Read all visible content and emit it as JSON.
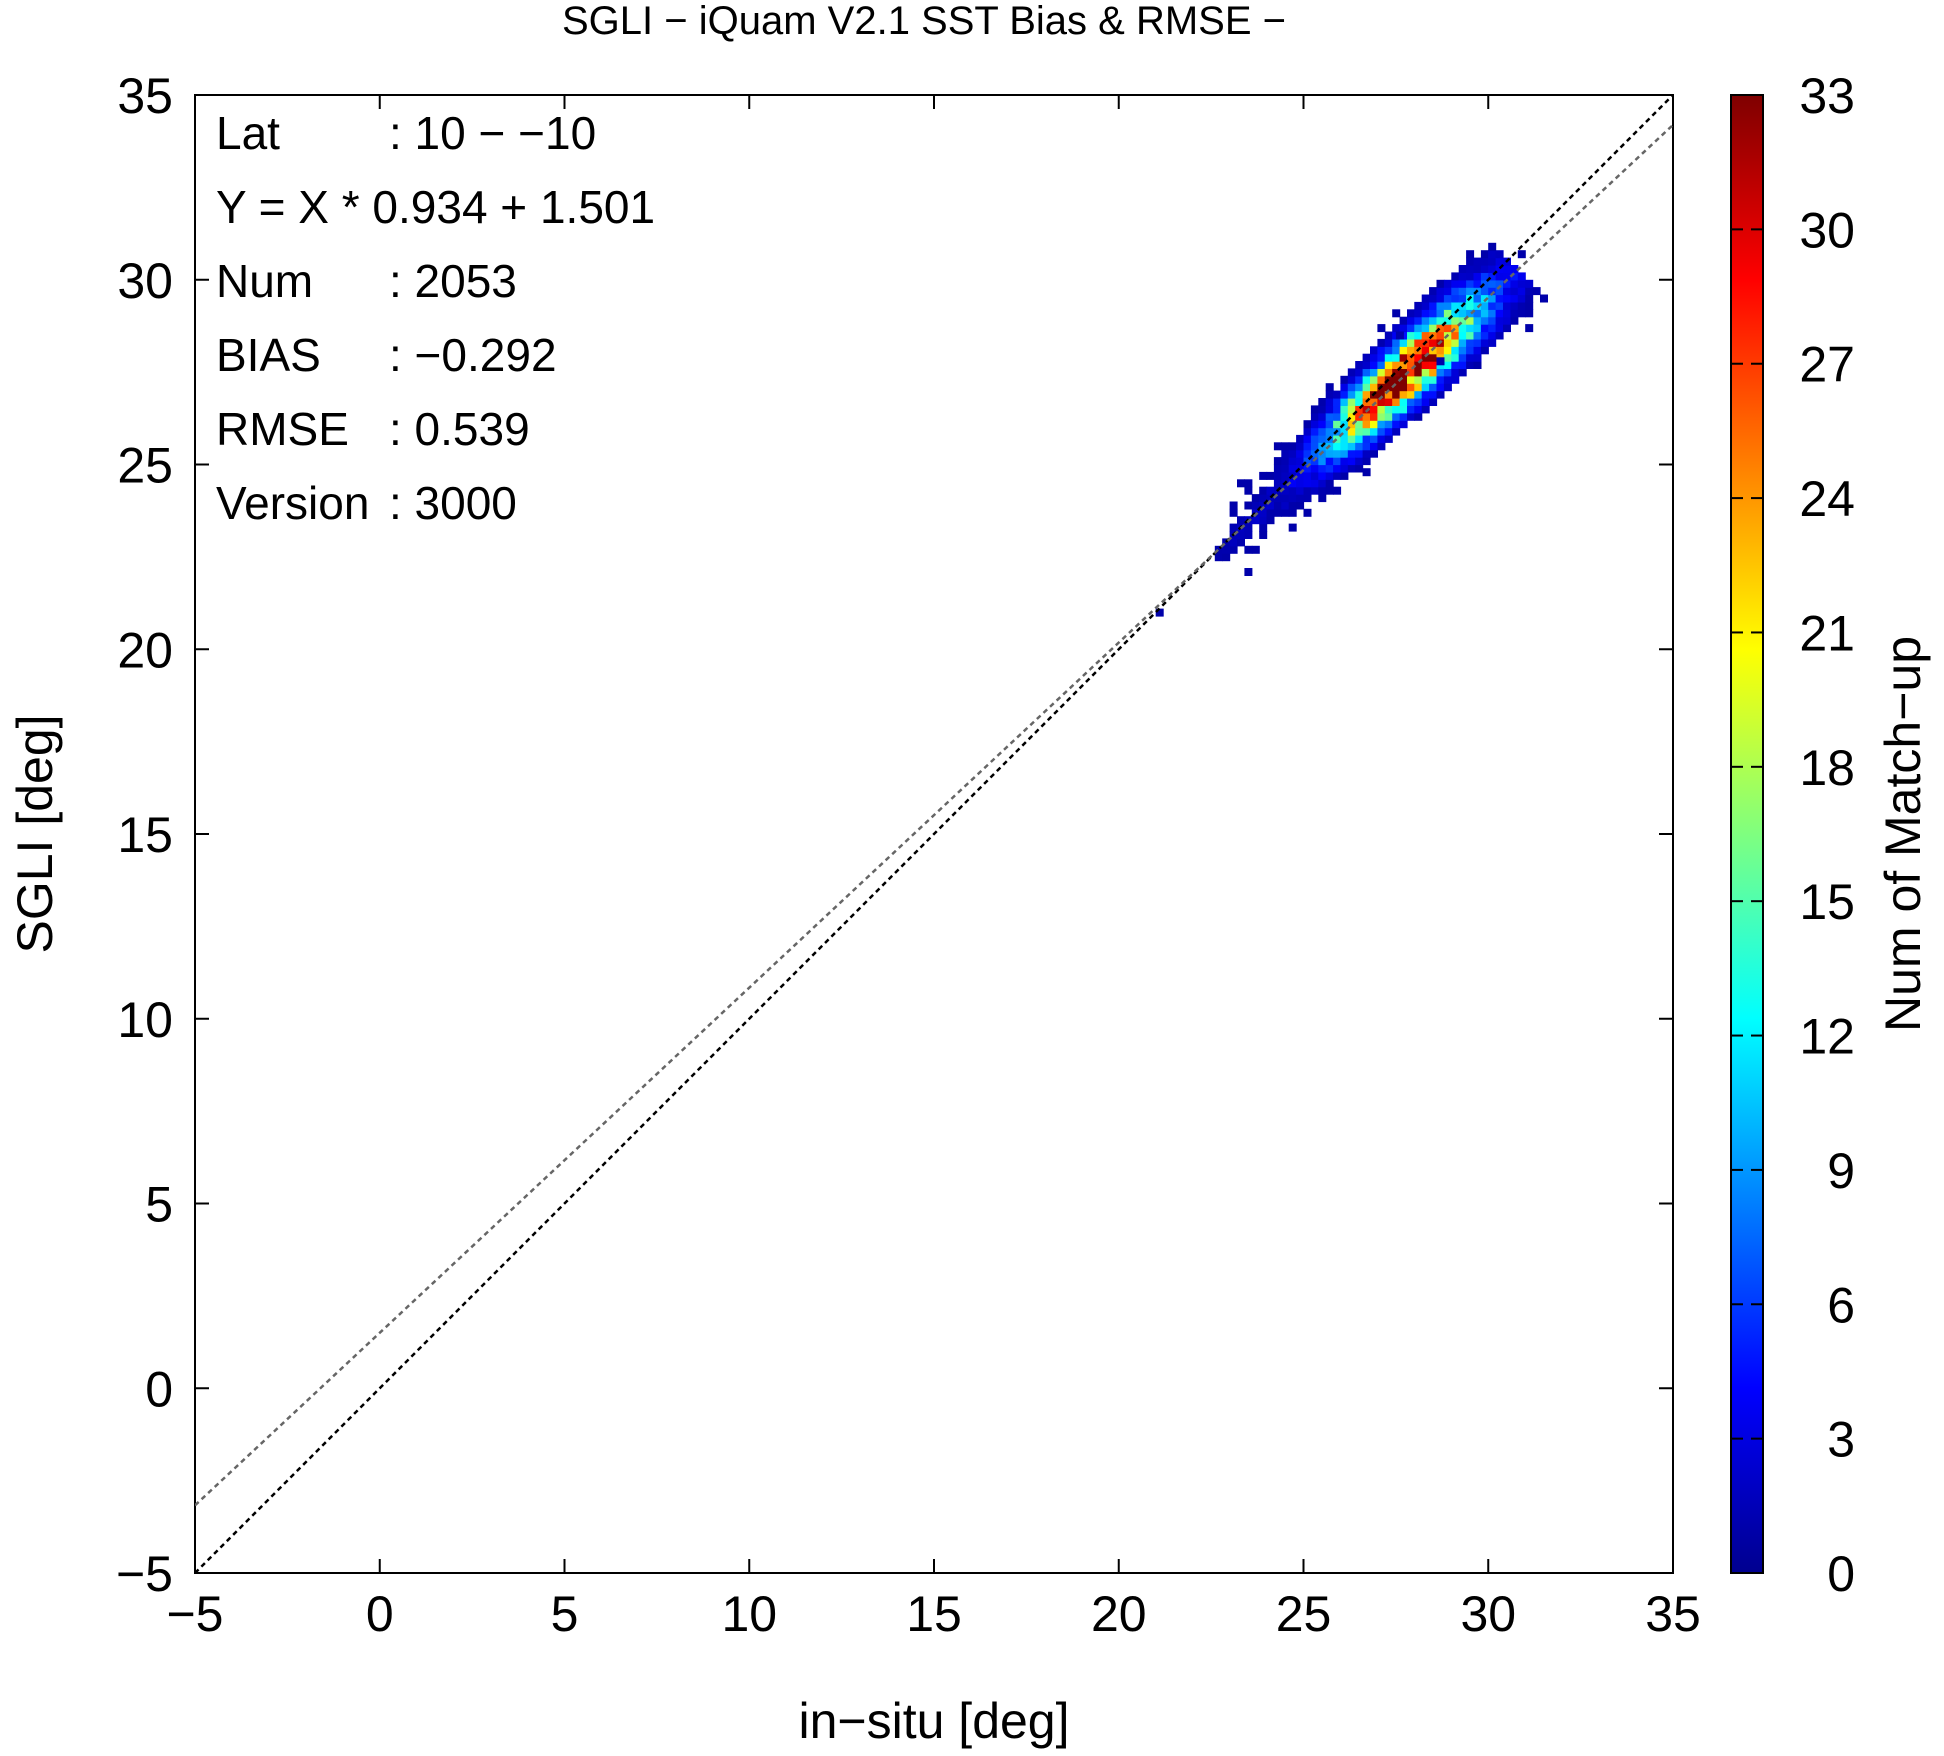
{
  "chart_data": {
    "type": "heatmap",
    "title": "SGLI − iQuam V2.1 SST Bias & RMSE  −",
    "xlabel": "in−situ [deg]",
    "ylabel": "SGLI [deg]",
    "xlim": [
      -5,
      35
    ],
    "ylim": [
      -5,
      35
    ],
    "x_ticks": [
      {
        "value": -5,
        "label": "−5"
      },
      {
        "value": 0,
        "label": "0"
      },
      {
        "value": 5,
        "label": "5"
      },
      {
        "value": 10,
        "label": "10"
      },
      {
        "value": 15,
        "label": "15"
      },
      {
        "value": 20,
        "label": "20"
      },
      {
        "value": 25,
        "label": "25"
      },
      {
        "value": 30,
        "label": "30"
      },
      {
        "value": 35,
        "label": "35"
      }
    ],
    "y_ticks": [
      {
        "value": -5,
        "label": "−5"
      },
      {
        "value": 0,
        "label": "0"
      },
      {
        "value": 5,
        "label": "5"
      },
      {
        "value": 10,
        "label": "10"
      },
      {
        "value": 15,
        "label": "15"
      },
      {
        "value": 20,
        "label": "20"
      },
      {
        "value": 25,
        "label": "25"
      },
      {
        "value": 30,
        "label": "30"
      },
      {
        "value": 35,
        "label": "35"
      }
    ],
    "grid": false,
    "stats": [
      {
        "name": "Lat",
        "value": ": 10 − −10"
      },
      {
        "name": "Y = X * 0.934 + 1.501",
        "value": ""
      },
      {
        "name": "Num",
        "value": ": 2053"
      },
      {
        "name": "BIAS",
        "value": ": −0.292"
      },
      {
        "name": "RMSE",
        "value": ": 0.539"
      },
      {
        "name": "Version",
        "value": ": 3000"
      }
    ],
    "lines": [
      {
        "kind": "one-to-one",
        "slope": 1,
        "intercept": 0,
        "style": "dotted",
        "color": "#000000"
      },
      {
        "kind": "regression",
        "slope": 0.934,
        "intercept": 1.501,
        "style": "dotted",
        "color": "#666666"
      }
    ],
    "colorbar": {
      "label": "Num of Match−up",
      "range": [
        0,
        33
      ],
      "ticks": [
        {
          "value": 0,
          "label": "0"
        },
        {
          "value": 3,
          "label": "3"
        },
        {
          "value": 6,
          "label": "6"
        },
        {
          "value": 9,
          "label": "9"
        },
        {
          "value": 12,
          "label": "12"
        },
        {
          "value": 15,
          "label": "15"
        },
        {
          "value": 18,
          "label": "18"
        },
        {
          "value": 21,
          "label": "21"
        },
        {
          "value": 24,
          "label": "24"
        },
        {
          "value": 27,
          "label": "27"
        },
        {
          "value": 30,
          "label": "30"
        },
        {
          "value": 33,
          "label": "33"
        }
      ],
      "colors": [
        "#00008f",
        "#0000ff",
        "#007fff",
        "#00ffff",
        "#7fff7f",
        "#ffff00",
        "#ff7f00",
        "#ff0000",
        "#7f0000"
      ]
    },
    "density": {
      "bin_size": 0.2,
      "count_range": [
        1,
        33
      ],
      "center_start": [
        22.8,
        22.7
      ],
      "center_end": [
        30.4,
        30.0
      ],
      "peak_center": [
        27.8,
        27.4
      ],
      "outliers": [
        [
          21.0,
          20.9
        ],
        [
          23.4,
          22.0
        ],
        [
          31.4,
          29.4
        ],
        [
          28.6,
          27.7
        ],
        [
          27.5,
          28.4
        ],
        [
          30.8,
          30.6
        ],
        [
          26.6,
          24.7
        ]
      ]
    }
  }
}
